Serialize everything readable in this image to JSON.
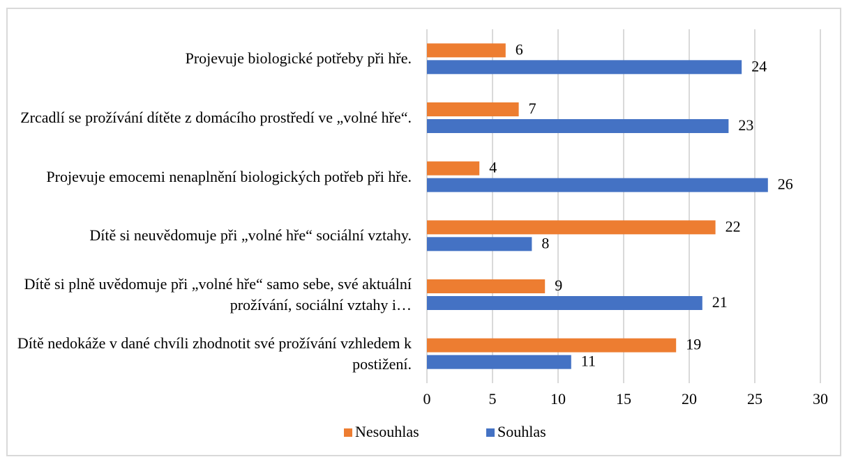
{
  "chart_data": {
    "type": "hbar",
    "categories": [
      "Projevuje biologické potřeby při hře.",
      "Zrcadlí se prožívání dítěte z domácího prostředí ve „volné hře“.",
      "Projevuje emocemi nenaplnění biologických potřeb při hře.",
      "Dítě si neuvědomuje při „volné hře“ sociální vztahy.",
      "Dítě si plně uvědomuje při „volné hře“ samo sebe, své aktuální prožívání, sociální vztahy i…",
      "Dítě nedokáže v dané chvíli zhodnotit své prožívání vzhledem k postižení."
    ],
    "series": [
      {
        "name": "Nesouhlas",
        "color": "#ed7d31",
        "values": [
          6,
          7,
          4,
          22,
          9,
          19
        ]
      },
      {
        "name": "Souhlas",
        "color": "#4472c4",
        "values": [
          24,
          23,
          26,
          8,
          21,
          11
        ]
      }
    ],
    "xlim": [
      0,
      30
    ],
    "xticks": [
      0,
      5,
      10,
      15,
      20,
      25,
      30
    ],
    "grid": true,
    "legend": "bottom"
  }
}
